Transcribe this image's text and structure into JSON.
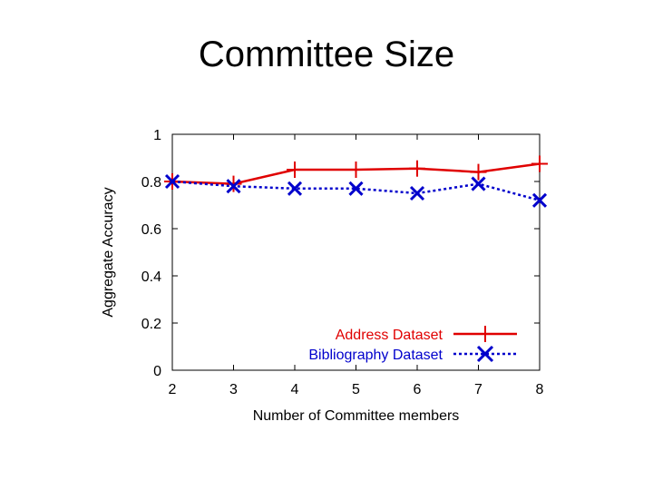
{
  "slide": {
    "title": "Committee Size"
  },
  "chart_data": {
    "type": "line",
    "xlabel": "Number of Committee members",
    "ylabel": "Aggregate Accuracy",
    "x": [
      2,
      3,
      4,
      5,
      6,
      7,
      8
    ],
    "xlim": [
      2,
      8
    ],
    "ylim": [
      0,
      1
    ],
    "xticks": [
      "2",
      "3",
      "4",
      "5",
      "6",
      "7",
      "8"
    ],
    "yticks": [
      "0",
      "0.2",
      "0.4",
      "0.6",
      "0.8",
      "1"
    ],
    "grid": false,
    "legend_position": "bottom-right",
    "series": [
      {
        "name": "Address Dataset",
        "values": [
          0.8,
          0.79,
          0.85,
          0.85,
          0.855,
          0.84,
          0.875
        ],
        "color": "#e00000",
        "marker": "plus",
        "line": "solid"
      },
      {
        "name": "Bibliography Dataset",
        "values": [
          0.8,
          0.78,
          0.77,
          0.77,
          0.75,
          0.79,
          0.72
        ],
        "color": "#0000cc",
        "marker": "x",
        "line": "dotted"
      }
    ]
  }
}
